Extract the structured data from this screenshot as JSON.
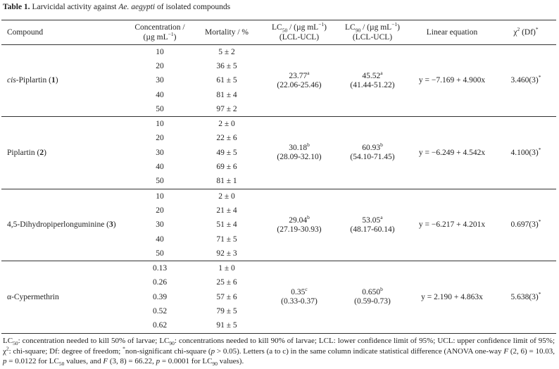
{
  "title": {
    "label": "Table 1.",
    "pre": "Larvicidal activity against ",
    "species": "Ae. aegypti",
    "post": " of isolated compounds"
  },
  "columns": {
    "compound": "Compound",
    "concentration": {
      "line1": "Concentration /",
      "line2": "(µg mL",
      "sup": "−1",
      "close": ")"
    },
    "mortality": "Mortality / %",
    "lc50": {
      "name": "LC",
      "sub": "50",
      "unit": " / (µg mL",
      "sup": "−1",
      "close": ")",
      "line2": "(LCL-UCL)"
    },
    "lc90": {
      "name": "LC",
      "sub": "90",
      "unit": " / (µg mL",
      "sup": "−1",
      "close": ")",
      "line2": "(LCL-UCL)"
    },
    "equation": "Linear equation",
    "chi": {
      "name": "χ",
      "sup": "2",
      "rest": " (Df)",
      "star": "*"
    }
  },
  "rows": [
    {
      "compound": {
        "prefix": "cis",
        "name": "-Piplartin (",
        "number": "1",
        "close": ")"
      },
      "concentrations": [
        "10",
        "20",
        "30",
        "40",
        "50"
      ],
      "mortality": [
        "5 ± 2",
        "36 ± 5",
        "61 ± 5",
        "81 ± 4",
        "97 ± 2"
      ],
      "lc50": {
        "value": "23.77",
        "letter": "a",
        "ci": "(22.06-25.46)"
      },
      "lc90": {
        "value": "45.52",
        "letter": "a",
        "ci": "(41.44-51.22)"
      },
      "equation": "y = −7.169 + 4.900x",
      "chi": {
        "value": "3.460(3)",
        "star": "*"
      }
    },
    {
      "compound": {
        "name": "Piplartin (",
        "number": "2",
        "close": ")"
      },
      "concentrations": [
        "10",
        "20",
        "30",
        "40",
        "50"
      ],
      "mortality": [
        "2 ± 0",
        "22 ± 6",
        "49 ± 5",
        "69 ± 6",
        "81 ± 1"
      ],
      "lc50": {
        "value": "30.18",
        "letter": "b",
        "ci": "(28.09-32.10)"
      },
      "lc90": {
        "value": "60.93",
        "letter": "b",
        "ci": "(54.10-71.45)"
      },
      "equation": "y = −6.249 + 4.542x",
      "chi": {
        "value": "4.100(3)",
        "star": "*"
      }
    },
    {
      "compound": {
        "name": "4,5-Dihydropiperlonguminine (",
        "number": "3",
        "close": ")"
      },
      "concentrations": [
        "10",
        "20",
        "30",
        "40",
        "50"
      ],
      "mortality": [
        "2 ± 0",
        "21 ± 4",
        "51 ± 4",
        "71 ± 5",
        "92 ± 3"
      ],
      "lc50": {
        "value": "29.04",
        "letter": "b",
        "ci": "(27.19-30.93)"
      },
      "lc90": {
        "value": "53.05",
        "letter": "a",
        "ci": "(48.17-60.14)"
      },
      "equation": "y = −6.217 + 4.201x",
      "chi": {
        "value": "0.697(3)",
        "star": "*"
      }
    },
    {
      "compound": {
        "name": "α-Cypermethrin"
      },
      "concentrations": [
        "0.13",
        "0.26",
        "0.39",
        "0.52",
        "0.62"
      ],
      "mortality": [
        "1 ± 0",
        "25 ± 6",
        "57 ± 6",
        "79 ± 5",
        "91 ± 5"
      ],
      "lc50": {
        "value": "0.35",
        "letter": "c",
        "ci": "(0.33-0.37)"
      },
      "lc90": {
        "value": "0.650",
        "letter": "b",
        "ci": "(0.59-0.73)"
      },
      "equation": "y = 2.190 + 4.863x",
      "chi": {
        "value": "5.638(3)",
        "star": "*"
      }
    }
  ],
  "footnote": [
    "LC",
    "50",
    ": concentration needed to kill 50% of larvae; LC",
    "90",
    ": concentrations needed to kill 90% of larvae; LCL: lower confidence limit of 95%; UCL: upper confidence limit of 95%; χ",
    "2",
    ": chi-square; Df: degree of freedom; ",
    "*",
    "non-significant chi-square (",
    "p",
    " > 0.05). Letters (a to c) in the same column indicate statistical difference (ANOVA one-way ",
    "F",
    " (2, 6) = 10.03, ",
    "p",
    " = 0.0122 for LC",
    "50",
    " values, and ",
    "F",
    " (3, 8) = 66.22, ",
    "p",
    " = 0.0001 for LC",
    "90",
    " values)."
  ]
}
